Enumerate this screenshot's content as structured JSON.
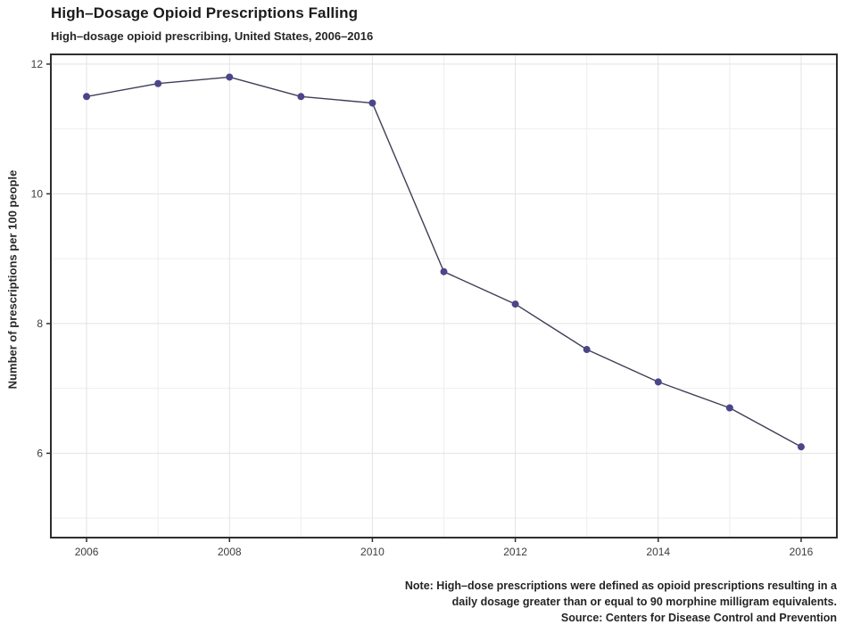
{
  "header": {
    "title": "High–Dosage Opioid Prescriptions Falling",
    "subtitle": "High–dosage opioid prescribing, United States, 2006–2016"
  },
  "footer": {
    "note_line1": "Note: High–dose prescriptions were defined as opioid prescriptions resulting in a",
    "note_line2": "daily dosage greater than or equal to 90 morphine milligram equivalents.",
    "source": "Source: Centers for Disease Control and Prevention"
  },
  "chart_data": {
    "type": "line",
    "title": "High–Dosage Opioid Prescriptions Falling",
    "subtitle": "High–dosage opioid prescribing, United States, 2006–2016",
    "x": [
      2006,
      2007,
      2008,
      2009,
      2010,
      2011,
      2012,
      2013,
      2014,
      2015,
      2016
    ],
    "values": [
      11.5,
      11.7,
      11.8,
      11.5,
      11.4,
      8.8,
      8.3,
      7.6,
      7.1,
      6.7,
      6.1
    ],
    "xlabel": "",
    "ylabel": "Number of prescriptions per 100 people",
    "x_ticks": [
      2006,
      2008,
      2010,
      2012,
      2014,
      2016
    ],
    "y_ticks": [
      6,
      8,
      10,
      12
    ],
    "y_minor_gridlines": [
      5,
      7,
      9,
      11
    ],
    "xlim": [
      2005.5,
      2016.5
    ],
    "ylim": [
      4.7,
      12.15
    ],
    "grid": "on",
    "legend": "none",
    "colors": {
      "point": "#4b4589",
      "line": "#3e3e57",
      "grid_major": "#e3e3e3",
      "grid_minor": "#eeeeee",
      "frame": "#2e2e2e",
      "tick": "#2e2e2e",
      "panel_bg": "#ffffff"
    }
  }
}
